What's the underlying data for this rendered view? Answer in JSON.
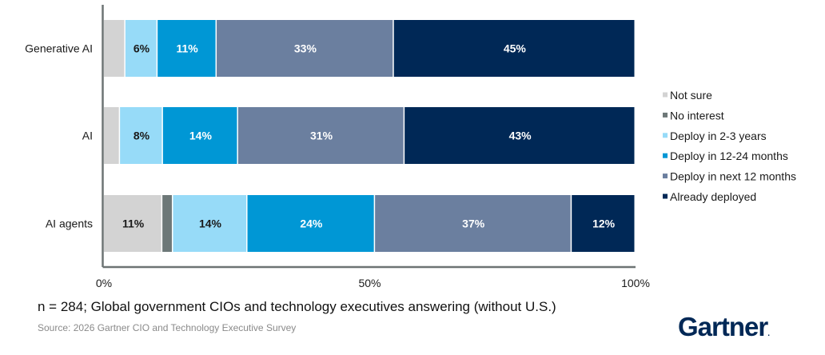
{
  "chart_data": {
    "type": "bar",
    "orientation": "horizontal",
    "stacked": true,
    "categories": [
      "Generative AI",
      "AI",
      "AI agents"
    ],
    "series": [
      {
        "name": "Not sure",
        "color": "#d3d3d3",
        "label_color": "#1a1a1a",
        "values": [
          4,
          3,
          11
        ],
        "labels": [
          "",
          "",
          "11%"
        ]
      },
      {
        "name": "No interest",
        "color": "#6d7878",
        "label_color": "#ffffff",
        "values": [
          0,
          0,
          2
        ],
        "labels": [
          "",
          "",
          ""
        ]
      },
      {
        "name": "Deploy in 2-3 years",
        "color": "#97dbf8",
        "label_color": "#1a1a1a",
        "values": [
          6,
          8,
          14
        ],
        "labels": [
          "6%",
          "8%",
          "14%"
        ]
      },
      {
        "name": "Deploy in 12-24 months",
        "color": "#0097d5",
        "label_color": "#ffffff",
        "values": [
          11,
          14,
          24
        ],
        "labels": [
          "11%",
          "14%",
          "24%"
        ]
      },
      {
        "name": "Deploy in next 12 months",
        "color": "#6b7f9f",
        "label_color": "#ffffff",
        "values": [
          33,
          31,
          37
        ],
        "labels": [
          "33%",
          "31%",
          "37%"
        ]
      },
      {
        "name": "Already deployed",
        "color": "#002856",
        "label_color": "#ffffff",
        "values": [
          45,
          43,
          12
        ],
        "labels": [
          "45%",
          "43%",
          "12%"
        ]
      }
    ],
    "xlim": [
      0,
      100
    ],
    "xticks": [
      0,
      50,
      100
    ],
    "xtick_labels": [
      "0%",
      "50%",
      "100%"
    ],
    "legend_position": "right",
    "grid": false
  },
  "footer": {
    "note": "n = 284; Global government CIOs and technology executives answering (without U.S.)",
    "source": "Source: 2026 Gartner CIO and Technology Executive Survey",
    "logo_text": "Gartner",
    "logo_mark": "."
  }
}
